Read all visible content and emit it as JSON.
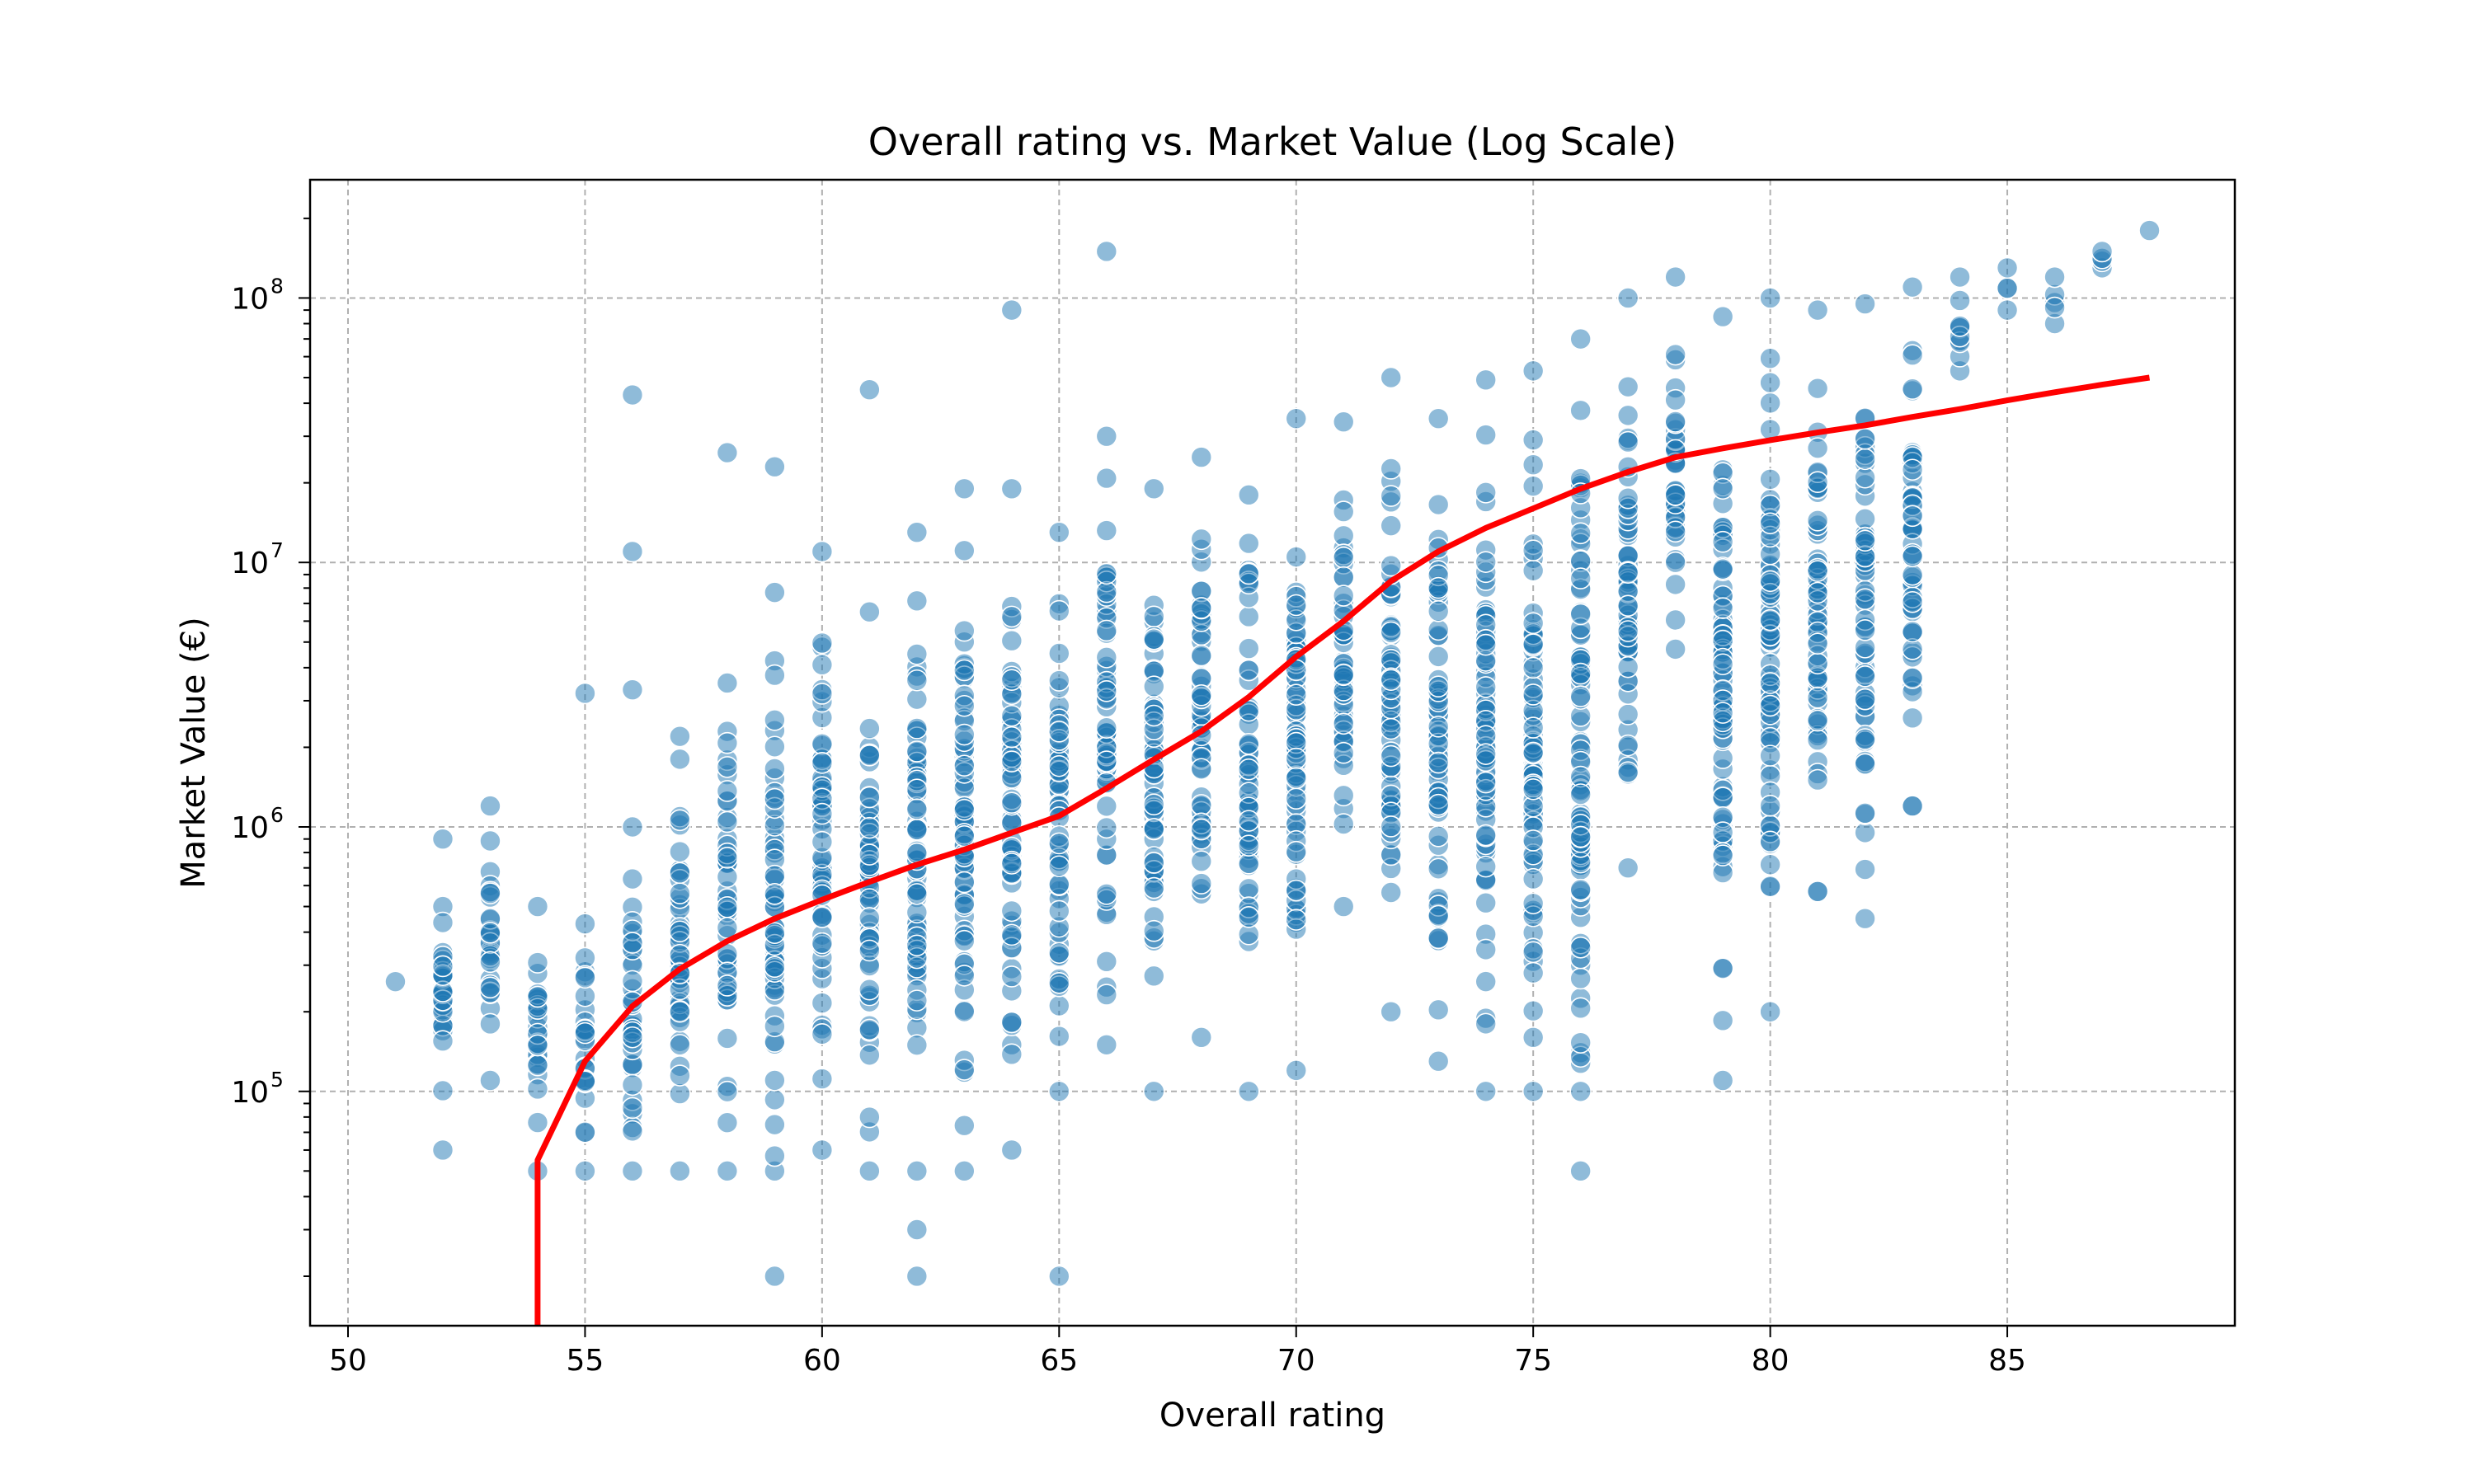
{
  "chart_data": {
    "type": "scatter",
    "title": "Overall rating vs. Market Value (Log Scale)",
    "xlabel": "Overall rating",
    "ylabel": "Market Value (€)",
    "yscale": "log",
    "xlim": [
      49.2,
      89.8
    ],
    "ylim": [
      13000,
      280000000
    ],
    "x_ticks": [
      50,
      55,
      60,
      65,
      70,
      75,
      80,
      85
    ],
    "y_ticks": [
      {
        "value": 100000,
        "base": "10",
        "exp": "5"
      },
      {
        "value": 1000000,
        "base": "10",
        "exp": "6"
      },
      {
        "value": 10000000,
        "base": "10",
        "exp": "7"
      },
      {
        "value": 100000000,
        "base": "10",
        "exp": "8"
      }
    ],
    "grid": true,
    "colors": {
      "points": "#1f77b4",
      "trend": "#ff0000"
    },
    "scatter_columns": [
      {
        "x": 51,
        "min": 260000,
        "max": 260000
      },
      {
        "x": 52,
        "min": 60000,
        "max": 900000
      },
      {
        "x": 53,
        "min": 110000,
        "max": 1200000
      },
      {
        "x": 54,
        "min": 50000,
        "max": 500000
      },
      {
        "x": 55,
        "min": 50000,
        "max": 430000
      },
      {
        "x": 56,
        "min": 50000,
        "max": 1000000
      },
      {
        "x": 57,
        "min": 50000,
        "max": 2200000
      },
      {
        "x": 58,
        "min": 50000,
        "max": 3500000
      },
      {
        "x": 59,
        "min": 50000,
        "max": 7700000
      },
      {
        "x": 60,
        "min": 60000,
        "max": 11000000
      },
      {
        "x": 61,
        "min": 50000,
        "max": 6500000
      },
      {
        "x": 62,
        "min": 50000,
        "max": 13000000
      },
      {
        "x": 63,
        "min": 50000,
        "max": 19000000
      },
      {
        "x": 64,
        "min": 60000,
        "max": 19000000
      },
      {
        "x": 65,
        "min": 100000,
        "max": 13000000
      },
      {
        "x": 66,
        "min": 150000,
        "max": 30000000
      },
      {
        "x": 67,
        "min": 100000,
        "max": 19000000
      },
      {
        "x": 68,
        "min": 160000,
        "max": 25000000
      },
      {
        "x": 69,
        "min": 100000,
        "max": 18000000
      },
      {
        "x": 70,
        "min": 120000,
        "max": 35000000
      },
      {
        "x": 71,
        "min": 500000,
        "max": 34000000
      },
      {
        "x": 72,
        "min": 200000,
        "max": 50000000
      },
      {
        "x": 73,
        "min": 130000,
        "max": 35000000
      },
      {
        "x": 74,
        "min": 100000,
        "max": 49000000
      },
      {
        "x": 75,
        "min": 100000,
        "max": 53000000
      },
      {
        "x": 76,
        "min": 50000,
        "max": 70000000
      },
      {
        "x": 77,
        "min": 700000,
        "max": 100000000
      },
      {
        "x": 78,
        "min": 4700000,
        "max": 120000000
      },
      {
        "x": 79,
        "min": 110000,
        "max": 85000000
      },
      {
        "x": 80,
        "min": 200000,
        "max": 100000000
      },
      {
        "x": 81,
        "min": 570000,
        "max": 90000000
      },
      {
        "x": 82,
        "min": 450000,
        "max": 95000000
      },
      {
        "x": 83,
        "min": 1200000,
        "max": 110000000
      },
      {
        "x": 84,
        "min": 53000000,
        "max": 120000000
      },
      {
        "x": 85,
        "min": 90000000,
        "max": 130000000
      },
      {
        "x": 86,
        "min": 80000000,
        "max": 120000000
      },
      {
        "x": 87,
        "min": 130000000,
        "max": 150000000
      },
      {
        "x": 88,
        "min": 180000000,
        "max": 180000000
      }
    ],
    "scatter_outliers": [
      {
        "x": 55,
        "y": 3200000
      },
      {
        "x": 56,
        "y": 43000000
      },
      {
        "x": 56,
        "y": 11000000
      },
      {
        "x": 56,
        "y": 3300000
      },
      {
        "x": 58,
        "y": 26000000
      },
      {
        "x": 59,
        "y": 23000000
      },
      {
        "x": 59,
        "y": 20000
      },
      {
        "x": 61,
        "y": 45000000
      },
      {
        "x": 62,
        "y": 30000
      },
      {
        "x": 62,
        "y": 20000
      },
      {
        "x": 64,
        "y": 90000000
      },
      {
        "x": 65,
        "y": 20000
      },
      {
        "x": 66,
        "y": 150000000
      },
      {
        "x": 73,
        "y": 380000
      },
      {
        "x": 74,
        "y": 180000
      },
      {
        "x": 76,
        "y": 350000
      },
      {
        "x": 76,
        "y": 100000
      },
      {
        "x": 77,
        "y": 5500000
      },
      {
        "x": 78,
        "y": 10000000
      },
      {
        "x": 79,
        "y": 780000
      },
      {
        "x": 79,
        "y": 2700000
      },
      {
        "x": 80,
        "y": 3500000
      },
      {
        "x": 80,
        "y": 720000
      },
      {
        "x": 80,
        "y": 880000
      },
      {
        "x": 81,
        "y": 570000
      },
      {
        "x": 83,
        "y": 1200000
      }
    ],
    "trend_line": {
      "x": [
        54,
        54,
        55,
        56,
        57,
        58,
        59,
        60,
        61,
        62,
        63,
        64,
        65,
        66,
        67,
        68,
        69,
        70,
        71,
        72,
        73,
        74,
        75,
        76,
        77,
        78,
        79,
        80,
        81,
        82,
        83,
        84,
        85,
        86,
        87,
        88
      ],
      "y": [
        13000,
        55000,
        130000,
        210000,
        290000,
        370000,
        450000,
        530000,
        620000,
        720000,
        820000,
        950000,
        1100000,
        1400000,
        1800000,
        2300000,
        3100000,
        4400000,
        6000000,
        8500000,
        11000000,
        13500000,
        16000000,
        19000000,
        22000000,
        25000000,
        27000000,
        29000000,
        31000000,
        33000000,
        35500000,
        38000000,
        41000000,
        44000000,
        47000000,
        50000000
      ]
    }
  }
}
